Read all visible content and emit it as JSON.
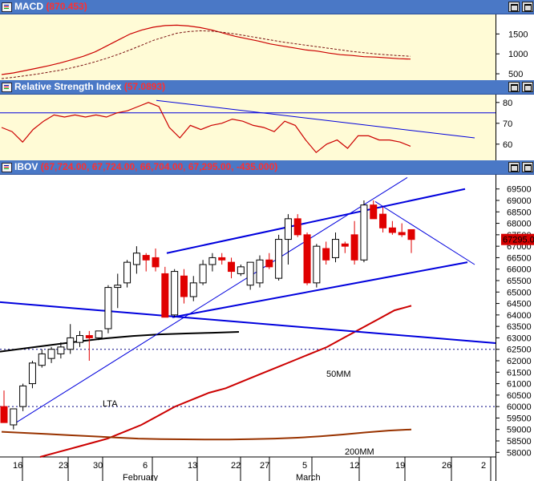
{
  "macd_panel": {
    "title": "MACD",
    "value": "(870.453)"
  },
  "rsi_panel": {
    "title": "Relative Strength Index",
    "value": "(57.0893)"
  },
  "price_panel": {
    "title": "IBOV",
    "value": "(67,724.00, 67,724.00, 66,704.00, 67,295.00, -435.000)",
    "last_price": "67295.0"
  },
  "annotations": {
    "lta": "LTA",
    "ma50": "50MM",
    "ma200": "200MM"
  },
  "colors": {
    "titlebar": "#4a78c6",
    "plot_bg": "#fffbd6",
    "up_candle": "#ffffff",
    "down_candle": "#e00000",
    "trend_lines": "#0000dd",
    "mm50": "#cc0000",
    "mm200": "#993300"
  },
  "chart_data": [
    {
      "type": "line",
      "title": "MACD",
      "y_ticks": [
        500,
        1000,
        1500
      ],
      "ylim": [
        380,
        1950
      ],
      "series": [
        {
          "values": [
            480,
            520,
            580,
            640,
            700,
            770,
            850,
            940,
            1050,
            1200,
            1350,
            1500,
            1600,
            1670,
            1710,
            1720,
            1700,
            1660,
            1600,
            1520,
            1440,
            1380,
            1320,
            1250,
            1200,
            1150,
            1100,
            1070,
            1020,
            980,
            960,
            930,
            920,
            900,
            880,
            870
          ]
        },
        {
          "values": [
            380,
            410,
            450,
            490,
            540,
            590,
            650,
            720,
            800,
            890,
            990,
            1100,
            1220,
            1340,
            1430,
            1520,
            1560,
            1580,
            1570,
            1540,
            1500,
            1450,
            1400,
            1350,
            1300,
            1260,
            1220,
            1180,
            1140,
            1100,
            1060,
            1030,
            1000,
            975,
            955,
            940
          ]
        }
      ]
    },
    {
      "type": "line",
      "title": "Relative Strength Index",
      "y_ticks": [
        60,
        70,
        80
      ],
      "ylim": [
        53,
        83
      ],
      "series": [
        {
          "values": [
            68,
            66,
            61,
            67,
            71,
            74,
            73,
            74,
            73,
            74,
            73,
            75,
            76,
            78,
            80,
            78,
            68,
            63,
            69,
            67,
            69,
            70,
            72,
            71,
            69,
            68,
            66,
            71,
            69,
            62,
            56,
            60,
            62,
            58,
            64,
            64,
            62,
            62,
            61,
            59
          ]
        }
      ]
    },
    {
      "type": "candlestick",
      "title": "IBOV",
      "x_ticks": [
        "16",
        "23",
        "30",
        "6",
        "13",
        "22",
        "27",
        "5",
        "12",
        "19",
        "26",
        "2"
      ],
      "x_labels": [
        "February",
        "March"
      ],
      "y_ticks": [
        58000,
        58500,
        59000,
        59500,
        60000,
        60500,
        61000,
        61500,
        62000,
        62500,
        63000,
        63500,
        64000,
        64500,
        65000,
        65500,
        66000,
        66500,
        67000,
        67500,
        68000,
        68500,
        69000,
        69500
      ],
      "ylim": [
        57800,
        70050
      ],
      "candles": [
        {
          "o": 60000,
          "h": 60700,
          "l": 59300,
          "c": 59300
        },
        {
          "o": 59200,
          "h": 59900,
          "l": 59000,
          "c": 59900
        },
        {
          "o": 60000,
          "h": 61000,
          "l": 59800,
          "c": 60900
        },
        {
          "o": 61000,
          "h": 62000,
          "l": 60800,
          "c": 61900
        },
        {
          "o": 61800,
          "h": 62500,
          "l": 61700,
          "c": 62300
        },
        {
          "o": 62100,
          "h": 62600,
          "l": 61900,
          "c": 62500
        },
        {
          "o": 62300,
          "h": 62800,
          "l": 62100,
          "c": 62600
        },
        {
          "o": 62500,
          "h": 63600,
          "l": 62300,
          "c": 63000
        },
        {
          "o": 62800,
          "h": 63300,
          "l": 62600,
          "c": 63100
        },
        {
          "o": 63100,
          "h": 63300,
          "l": 62000,
          "c": 63000
        },
        {
          "o": 63000,
          "h": 63300,
          "l": 62900,
          "c": 63300
        },
        {
          "o": 63400,
          "h": 65300,
          "l": 63200,
          "c": 65200
        },
        {
          "o": 65200,
          "h": 65800,
          "l": 64300,
          "c": 65300
        },
        {
          "o": 65400,
          "h": 66400,
          "l": 65200,
          "c": 66300
        },
        {
          "o": 66200,
          "h": 67000,
          "l": 65800,
          "c": 66700
        },
        {
          "o": 66600,
          "h": 66700,
          "l": 65900,
          "c": 66400
        },
        {
          "o": 66500,
          "h": 66900,
          "l": 65900,
          "c": 66100
        },
        {
          "o": 65800,
          "h": 66100,
          "l": 63900,
          "c": 63900
        },
        {
          "o": 64000,
          "h": 66000,
          "l": 63900,
          "c": 65900
        },
        {
          "o": 65700,
          "h": 66000,
          "l": 64500,
          "c": 64800
        },
        {
          "o": 64800,
          "h": 65700,
          "l": 64600,
          "c": 65400
        },
        {
          "o": 65400,
          "h": 66400,
          "l": 65300,
          "c": 66200
        },
        {
          "o": 66200,
          "h": 66700,
          "l": 65900,
          "c": 66500
        },
        {
          "o": 66500,
          "h": 66700,
          "l": 66200,
          "c": 66400
        },
        {
          "o": 66300,
          "h": 66500,
          "l": 65600,
          "c": 65900
        },
        {
          "o": 65800,
          "h": 66200,
          "l": 65700,
          "c": 66100
        },
        {
          "o": 65300,
          "h": 66300,
          "l": 65100,
          "c": 66300
        },
        {
          "o": 65400,
          "h": 66600,
          "l": 65200,
          "c": 66400
        },
        {
          "o": 66400,
          "h": 66700,
          "l": 66000,
          "c": 66100
        },
        {
          "o": 65600,
          "h": 67500,
          "l": 65500,
          "c": 67300
        },
        {
          "o": 67300,
          "h": 68400,
          "l": 66200,
          "c": 68200
        },
        {
          "o": 68200,
          "h": 68400,
          "l": 67400,
          "c": 67500
        },
        {
          "o": 67500,
          "h": 67600,
          "l": 65300,
          "c": 65400
        },
        {
          "o": 65400,
          "h": 67100,
          "l": 65200,
          "c": 67000
        },
        {
          "o": 66900,
          "h": 67200,
          "l": 66200,
          "c": 66400
        },
        {
          "o": 66500,
          "h": 67600,
          "l": 66300,
          "c": 67300
        },
        {
          "o": 67100,
          "h": 67200,
          "l": 66700,
          "c": 67000
        },
        {
          "o": 67500,
          "h": 68100,
          "l": 66200,
          "c": 66400
        },
        {
          "o": 66400,
          "h": 69000,
          "l": 66300,
          "c": 68800
        },
        {
          "o": 68800,
          "h": 69000,
          "l": 68200,
          "c": 68200
        },
        {
          "o": 68400,
          "h": 68700,
          "l": 67600,
          "c": 67800
        },
        {
          "o": 67800,
          "h": 68100,
          "l": 67500,
          "c": 67600
        },
        {
          "o": 67600,
          "h": 68000,
          "l": 67400,
          "c": 67500
        },
        {
          "o": 67724,
          "h": 67724,
          "l": 66704,
          "c": 67295
        }
      ],
      "moving_averages": [
        {
          "name": "50MM",
          "values": [
            57800,
            58000,
            58200,
            58400,
            58600,
            58900,
            59200,
            59600,
            60000,
            60300,
            60600,
            60800,
            61100,
            61400,
            61700,
            62000,
            62300,
            62600,
            63000,
            63400,
            63800,
            64200,
            64400
          ]
        },
        {
          "name": "200MM",
          "values": [
            58900,
            58850,
            58800,
            58750,
            58700,
            58650,
            58600,
            58580,
            58570,
            58560,
            58560,
            58580,
            58600,
            58640,
            58700,
            58780,
            58870,
            58950,
            59000
          ]
        },
        {
          "values": [
            62400,
            62550,
            62700,
            62850,
            62980,
            63080,
            63150,
            63190,
            63220,
            63260
          ]
        }
      ]
    }
  ]
}
